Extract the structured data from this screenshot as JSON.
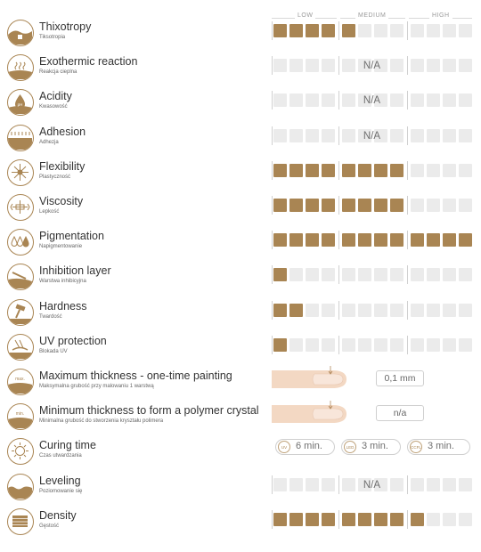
{
  "scale": {
    "low": "LOW",
    "medium": "MEDIUM",
    "high": "HIGH"
  },
  "properties": [
    {
      "title": "Thixotropy",
      "subtitle": "Tiksotropia",
      "icon": "thixotropy-icon",
      "type": "cells",
      "level": 5
    },
    {
      "title": "Exothermic reaction",
      "subtitle": "Reakcja cieplna",
      "icon": "heat-waves-icon",
      "type": "na",
      "na_text": "N/A"
    },
    {
      "title": "Acidity",
      "subtitle": "Kwasowość",
      "icon": "ph-drop-icon",
      "type": "na",
      "na_text": "N/A"
    },
    {
      "title": "Adhesion",
      "subtitle": "Adhezja",
      "icon": "adhesion-icon",
      "type": "na",
      "na_text": "N/A"
    },
    {
      "title": "Flexibility",
      "subtitle": "Plastyczność",
      "icon": "flexibility-icon",
      "type": "cells",
      "level": 8
    },
    {
      "title": "Viscosity",
      "subtitle": "Lepkość",
      "icon": "viscosity-icon",
      "type": "cells",
      "level": 8
    },
    {
      "title": "Pigmentation",
      "subtitle": "Napigmentowanie",
      "icon": "pigment-drops-icon",
      "type": "cells",
      "level": 12
    },
    {
      "title": "Inhibition layer",
      "subtitle": "Warstwa inhibicyjna",
      "icon": "inhibition-layer-icon",
      "type": "cells",
      "level": 1
    },
    {
      "title": "Hardness",
      "subtitle": "Twardość",
      "icon": "hammer-icon",
      "type": "cells",
      "level": 2
    },
    {
      "title": "UV protection",
      "subtitle": "Blokada UV",
      "icon": "uv-protection-icon",
      "type": "cells",
      "level": 1
    },
    {
      "title": "Maximum thickness - one-time painting",
      "subtitle": "Maksymalna grubość przy malowaniu 1 warstwą",
      "icon": "max-thickness-icon",
      "icon_text": "max.",
      "type": "value",
      "value": "0,1 mm"
    },
    {
      "title": "Minimum thickness to form a polymer crystal",
      "subtitle": "Minimalna grubość do stworzenia kryształu polimera",
      "icon": "min-thickness-icon",
      "icon_text": "min.",
      "type": "value",
      "value": "n/a"
    },
    {
      "title": "Curing time",
      "subtitle": "Czas utwardzania",
      "icon": "curing-lamp-icon",
      "type": "curing",
      "curing": [
        {
          "tag": "UV",
          "time": "6 min."
        },
        {
          "tag": "LED",
          "time": "3 min."
        },
        {
          "tag": "CCFL",
          "time": "3 min."
        }
      ]
    },
    {
      "title": "Leveling",
      "subtitle": "Poziomowanie się",
      "icon": "leveling-icon",
      "type": "na",
      "na_text": "N/A"
    },
    {
      "title": "Density",
      "subtitle": "Gęstość",
      "icon": "density-icon",
      "type": "cells",
      "level": 9
    }
  ],
  "colors": {
    "accent": "#a98553",
    "cell_empty": "#ebebeb",
    "skin": "#f3d8c3"
  }
}
